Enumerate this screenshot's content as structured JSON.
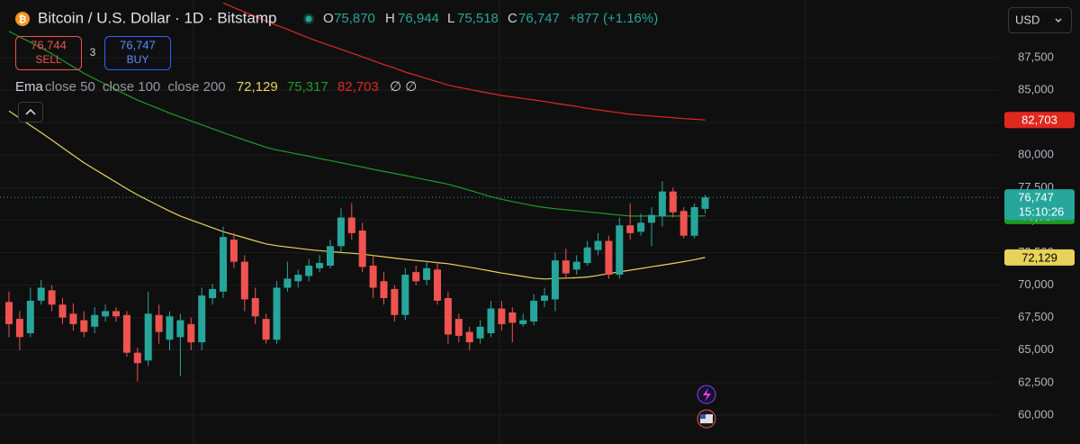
{
  "header": {
    "title": "Bitcoin / U.S. Dollar · 1D · Bitstamp",
    "ohlc": [
      {
        "key": "O",
        "value": "75,870"
      },
      {
        "key": "H",
        "value": "76,944"
      },
      {
        "key": "L",
        "value": "75,518"
      },
      {
        "key": "C",
        "value": "76,747"
      }
    ],
    "change": "+877 (+1.16%)",
    "sell": {
      "price": "76,744",
      "label": "SELL"
    },
    "spread": "3",
    "buy": {
      "price": "76,747",
      "label": "BUY"
    },
    "indicator": "Ema",
    "indicator_extra": "∅ ∅",
    "currency": "USD"
  },
  "chart_data": {
    "type": "candlestick",
    "up_color": "#26a69a",
    "down_color": "#ef5350",
    "open": [
      68700,
      67400,
      66300,
      68800,
      69600,
      68500,
      67800,
      67300,
      66800,
      67600,
      68000,
      67700,
      64800,
      64200,
      67700,
      65800,
      66000,
      67000,
      65600,
      69000,
      69500,
      73500,
      71800,
      69000,
      67400,
      65800,
      69800,
      70300,
      70700,
      71300,
      71500,
      73000,
      75200,
      74200,
      71500,
      70300,
      69700,
      67700,
      71000,
      70400,
      71200,
      69000,
      67400,
      66400,
      65900,
      66300,
      68200,
      67900,
      67000,
      67200,
      68800,
      68900,
      71900,
      71200,
      71700,
      72700,
      73400,
      70800,
      74600,
      74100,
      74800,
      75300,
      77200,
      75700,
      73800,
      75870
    ],
    "high": [
      69500,
      68000,
      69800,
      70400,
      70000,
      69000,
      68600,
      68000,
      68300,
      68500,
      68300,
      68000,
      65200,
      69500,
      68500,
      68000,
      67800,
      67500,
      69800,
      70100,
      74500,
      74000,
      72300,
      69800,
      67800,
      70300,
      71800,
      71200,
      72000,
      72300,
      73500,
      75900,
      76300,
      74800,
      72300,
      71000,
      70000,
      71300,
      71500,
      71800,
      71800,
      69500,
      67800,
      66800,
      67300,
      68800,
      68800,
      68300,
      67800,
      69300,
      69800,
      72500,
      72800,
      72300,
      73400,
      74000,
      73800,
      75200,
      76300,
      75500,
      76000,
      78000,
      77500,
      76000,
      76300,
      76944
    ],
    "low": [
      66000,
      65000,
      66000,
      68500,
      68000,
      67000,
      66500,
      66000,
      66300,
      67200,
      67200,
      64500,
      62600,
      63800,
      65500,
      65000,
      63000,
      65000,
      65000,
      68500,
      69000,
      71300,
      68000,
      67000,
      65500,
      65500,
      69500,
      69800,
      70300,
      71000,
      71300,
      72500,
      73500,
      71000,
      69000,
      68500,
      67200,
      67300,
      70000,
      70000,
      68500,
      65500,
      65600,
      65000,
      65500,
      66000,
      66500,
      65600,
      66800,
      66900,
      68300,
      68000,
      70500,
      70800,
      71500,
      72300,
      70500,
      70500,
      73500,
      73800,
      73000,
      74500,
      75200,
      73600,
      73600,
      75518
    ],
    "close": [
      67000,
      66000,
      68800,
      69800,
      68500,
      67500,
      67000,
      66400,
      67700,
      68000,
      67600,
      64800,
      64000,
      67800,
      66400,
      67600,
      67300,
      65600,
      69200,
      69700,
      73700,
      71800,
      68900,
      67600,
      65800,
      69800,
      70500,
      70800,
      71500,
      71700,
      73000,
      75200,
      74000,
      71400,
      69800,
      69000,
      67700,
      70800,
      70300,
      71300,
      68800,
      66200,
      66100,
      65600,
      66800,
      68200,
      67000,
      67100,
      67300,
      68800,
      69200,
      71900,
      70900,
      71800,
      72900,
      73400,
      70800,
      74600,
      74000,
      74800,
      75400,
      77200,
      75600,
      73800,
      76000,
      76747
    ],
    "close_label": "76,747",
    "countdown": "15:10:26",
    "series": [
      {
        "name": "close 50",
        "color": "#e8d35a",
        "last_label": "72,129",
        "values": [
          83390,
          82840,
          82280,
          81730,
          81160,
          80570,
          79990,
          79410,
          78910,
          78410,
          77910,
          77410,
          76940,
          76520,
          76100,
          75690,
          75310,
          75010,
          74710,
          74410,
          74110,
          73870,
          73640,
          73400,
          73170,
          73030,
          72930,
          72830,
          72730,
          72650,
          72580,
          72510,
          72450,
          72380,
          72280,
          72180,
          72080,
          71980,
          71900,
          71820,
          71730,
          71650,
          71510,
          71380,
          71230,
          71080,
          70930,
          70800,
          70670,
          70540,
          70470,
          70510,
          70540,
          70570,
          70620,
          70750,
          70890,
          71020,
          71150,
          71280,
          71410,
          71540,
          71670,
          71810,
          71960,
          72129
        ]
      },
      {
        "name": "close 100",
        "color": "#1f9a28",
        "last_label": "75,317",
        "values": [
          89510,
          89090,
          88680,
          88260,
          87790,
          87290,
          86790,
          86290,
          85870,
          85450,
          85040,
          84630,
          84230,
          83900,
          83570,
          83230,
          82930,
          82630,
          82330,
          82030,
          81730,
          81440,
          81160,
          80880,
          80600,
          80390,
          80240,
          80070,
          79910,
          79740,
          79580,
          79410,
          79240,
          79080,
          78910,
          78740,
          78590,
          78430,
          78260,
          78090,
          77930,
          77760,
          77530,
          77300,
          77050,
          76800,
          76600,
          76430,
          76260,
          76100,
          75970,
          75880,
          75800,
          75720,
          75640,
          75560,
          75470,
          75390,
          75310,
          75310,
          75310,
          75310,
          75310,
          75315,
          75315,
          75317
        ]
      },
      {
        "name": "close 200",
        "color": "#e0281f",
        "last_label": "82,703",
        "values": [
          null,
          null,
          null,
          null,
          null,
          null,
          null,
          null,
          null,
          null,
          null,
          null,
          null,
          null,
          null,
          null,
          null,
          null,
          null,
          null,
          91700,
          91350,
          91010,
          90660,
          90320,
          89980,
          89670,
          89340,
          89010,
          88700,
          88420,
          88140,
          87850,
          87560,
          87260,
          86960,
          86690,
          86390,
          86140,
          85890,
          85640,
          85390,
          85210,
          85060,
          84890,
          84730,
          84590,
          84480,
          84360,
          84240,
          84120,
          83990,
          83860,
          83740,
          83600,
          83480,
          83370,
          83260,
          83140,
          83080,
          83010,
          82940,
          82880,
          82810,
          82760,
          82703
        ]
      }
    ],
    "ylim": [
      57780,
      91930
    ],
    "yticks": [
      {
        "value": 60000,
        "label": "60,000"
      },
      {
        "value": 62500,
        "label": "62,500"
      },
      {
        "value": 65000,
        "label": "65,000"
      },
      {
        "value": 67500,
        "label": "67,500"
      },
      {
        "value": 70000,
        "label": "70,000"
      },
      {
        "value": 72500,
        "label": "72,500"
      },
      {
        "value": 75000,
        "label": "75,000"
      },
      {
        "value": 77500,
        "label": "77,500"
      },
      {
        "value": 80000,
        "label": "80,000"
      },
      {
        "value": 82500,
        "label": "82,500"
      },
      {
        "value": 85000,
        "label": "85,000"
      },
      {
        "value": 87500,
        "label": "87,500"
      }
    ],
    "grid": true
  }
}
